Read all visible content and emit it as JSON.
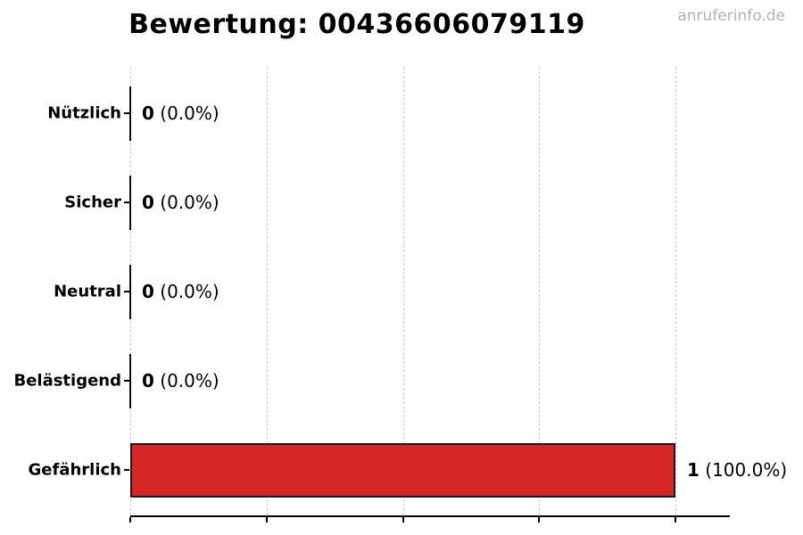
{
  "watermark": "anruferinfo.de",
  "chart_data": {
    "type": "bar",
    "orientation": "horizontal",
    "title": "Bewertung: 00436606079119",
    "categories": [
      "Nützlich",
      "Sicher",
      "Neutral",
      "Belästigend",
      "Gefährlich"
    ],
    "values": [
      0,
      0,
      0,
      0,
      1
    ],
    "value_labels": [
      {
        "count": "0",
        "pct": "(0.0%)"
      },
      {
        "count": "0",
        "pct": "(0.0%)"
      },
      {
        "count": "0",
        "pct": "(0.0%)"
      },
      {
        "count": "0",
        "pct": "(0.0%)"
      },
      {
        "count": "1",
        "pct": "(100.0%)"
      }
    ],
    "xlabel": "",
    "ylabel": "",
    "xlim": [
      0,
      1.1
    ],
    "x_ticks": [
      0,
      0.25,
      0.5,
      0.75,
      1.0
    ],
    "grid": {
      "axis": "x",
      "style": "dashed",
      "color": "#cccccc"
    },
    "legend": "none",
    "bar_color": "#d62728",
    "bar_edge_color": "#1a1a1a",
    "zero_bar_color": "#111111",
    "text_color": "#000000",
    "watermark_color": "#b3b3b3"
  }
}
